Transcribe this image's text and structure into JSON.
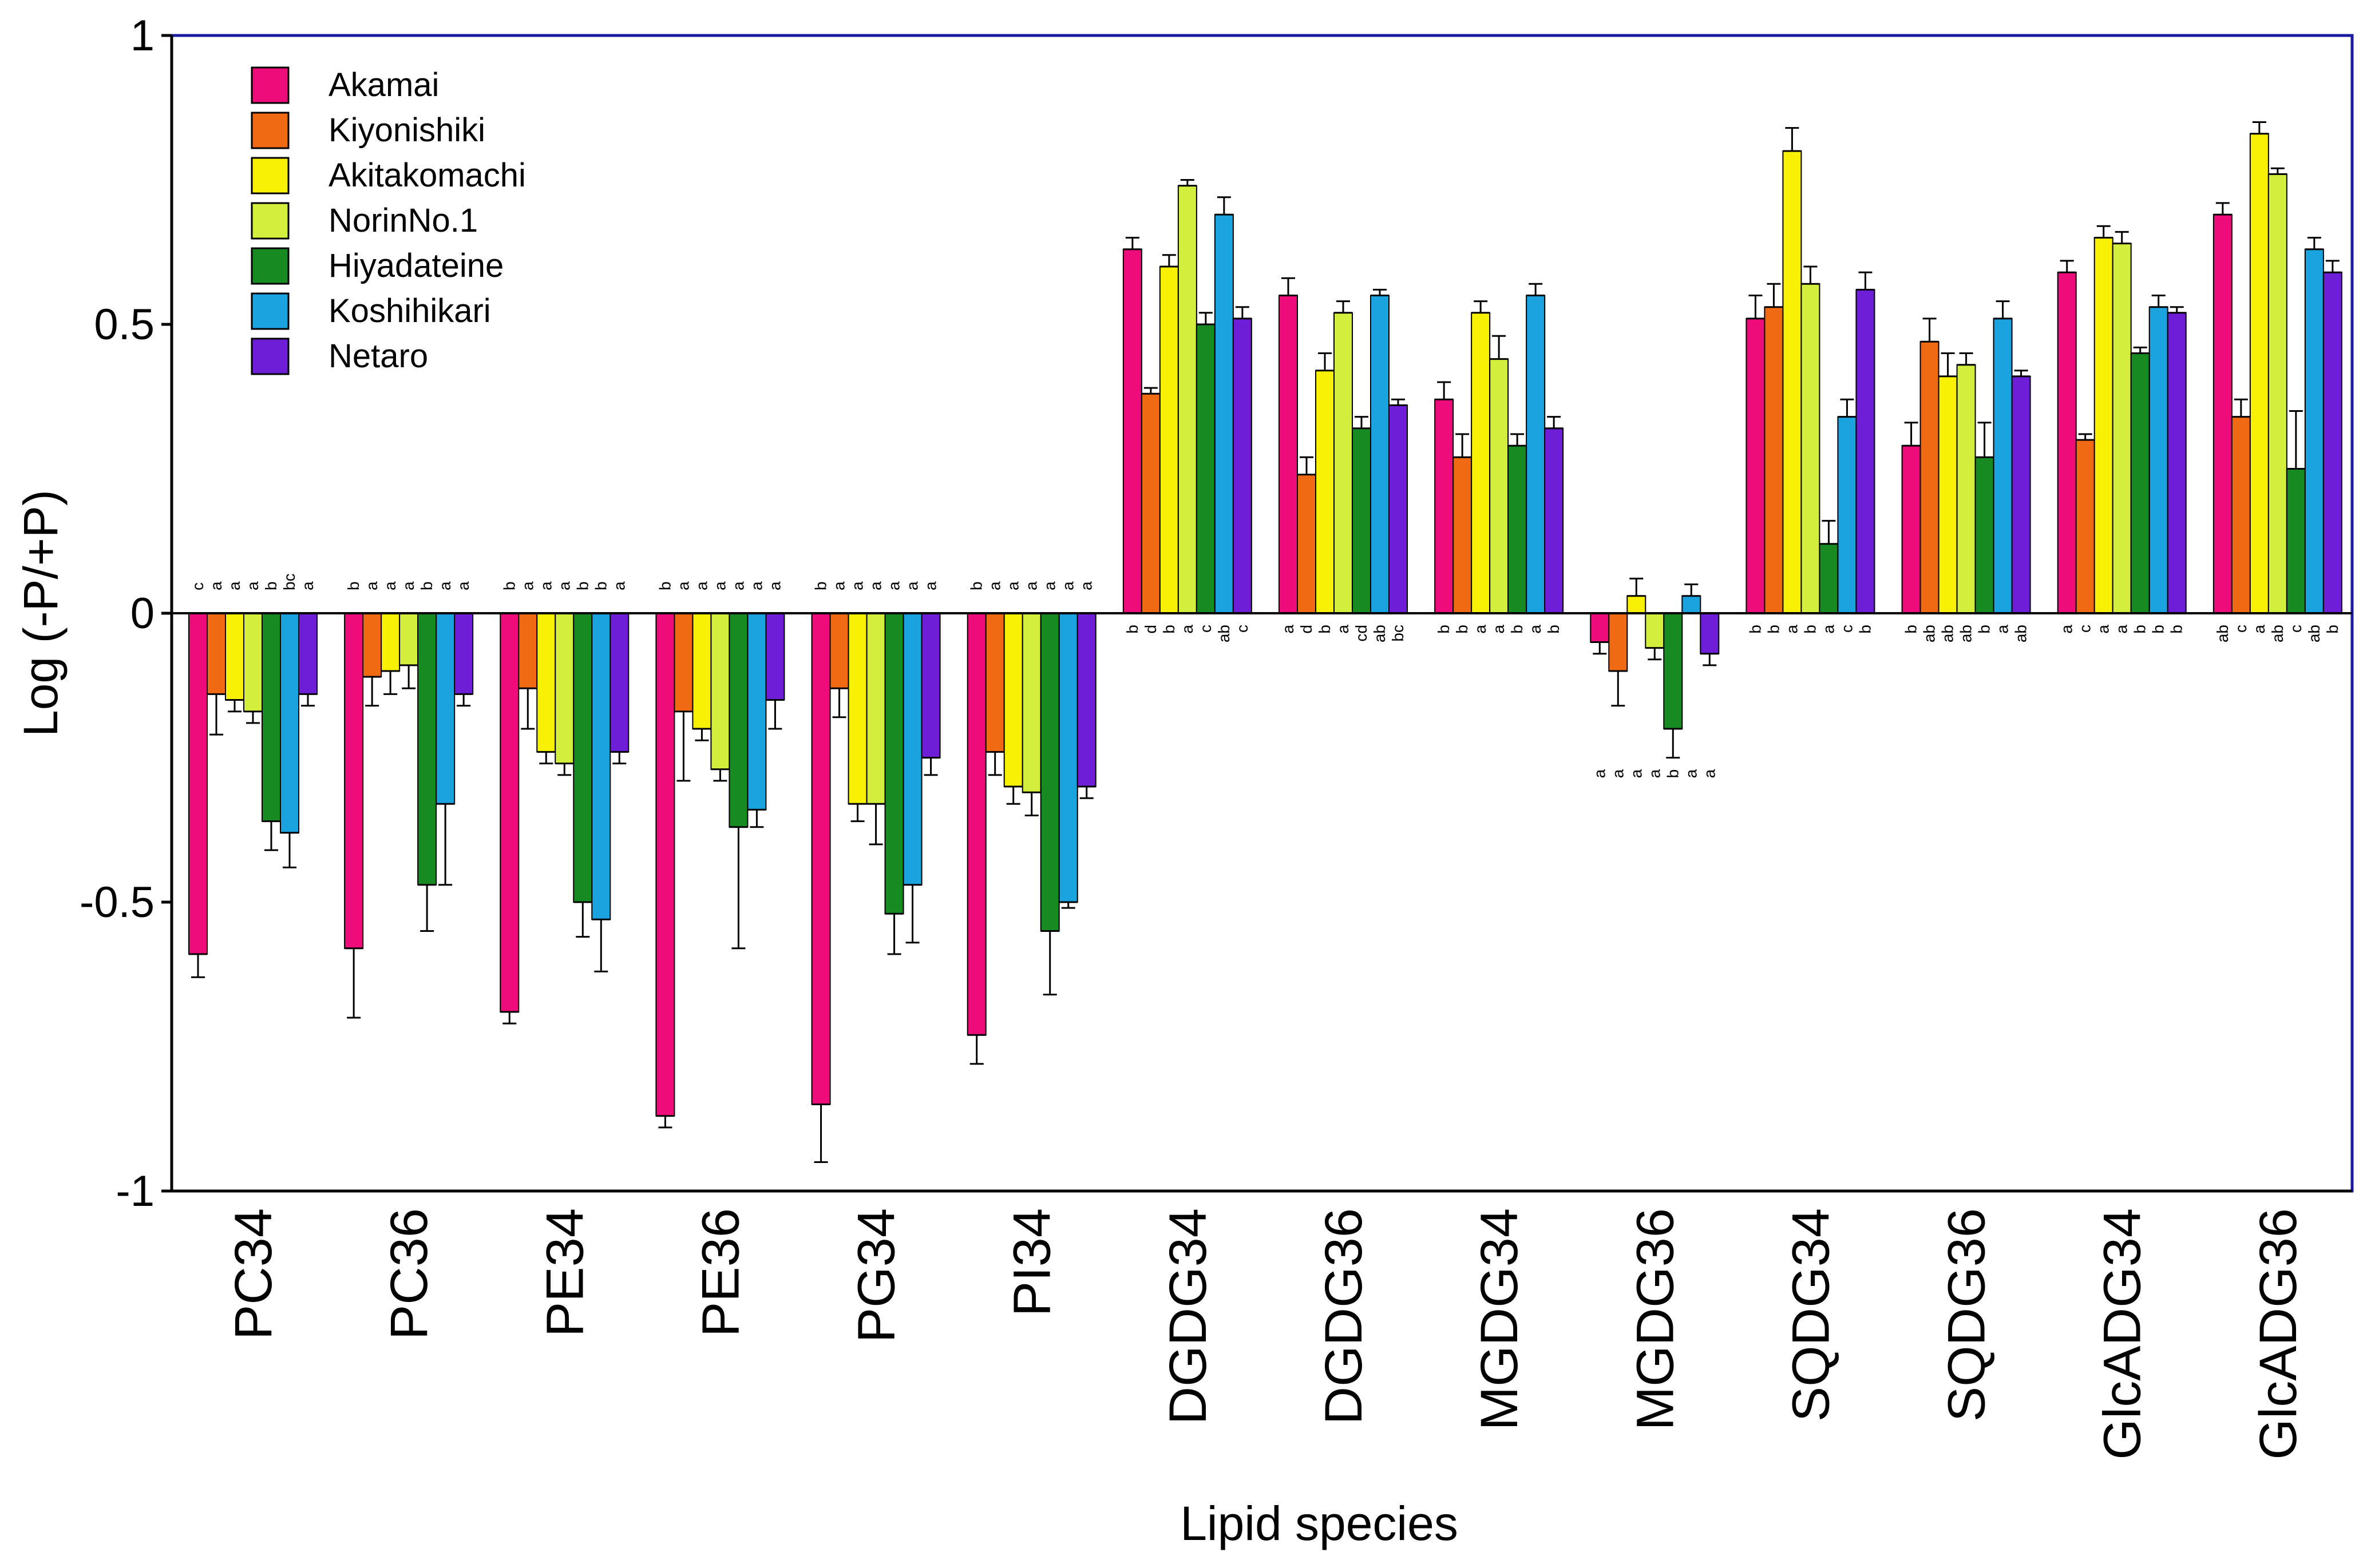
{
  "chart_data": {
    "type": "bar",
    "xlabel": "Lipid species",
    "ylabel": "Log (-P/+P)",
    "ylim": [
      -1,
      1
    ],
    "yticks": [
      "1",
      "0.5",
      "0",
      "-0.5",
      "-1"
    ],
    "ytick_values": [
      1,
      0.5,
      0,
      -0.5,
      -1
    ],
    "grid": false,
    "legend_position": "top-left",
    "categories": [
      "PC34",
      "PC36",
      "PE34",
      "PE36",
      "PG34",
      "PI34",
      "DGDG34",
      "DGDG36",
      "MGDG34",
      "MGDG36",
      "SQDG34",
      "SQDG36",
      "GlcADG34",
      "GlcADG36"
    ],
    "series": [
      {
        "name": "Akamai",
        "color": "#ee0b7a",
        "values": [
          -0.59,
          -0.58,
          -0.69,
          -0.87,
          -0.85,
          -0.73,
          0.63,
          0.55,
          0.37,
          -0.05,
          0.51,
          0.29,
          0.59,
          0.69
        ],
        "errors": [
          0.04,
          0.12,
          0.02,
          0.02,
          0.1,
          0.05,
          0.02,
          0.03,
          0.03,
          0.02,
          0.04,
          0.04,
          0.02,
          0.02
        ]
      },
      {
        "name": "Kiyonishiki",
        "color": "#f06a14",
        "values": [
          -0.14,
          -0.11,
          -0.13,
          -0.17,
          -0.13,
          -0.24,
          0.38,
          0.24,
          0.27,
          -0.1,
          0.53,
          0.47,
          0.3,
          0.34
        ],
        "errors": [
          0.07,
          0.05,
          0.07,
          0.12,
          0.05,
          0.04,
          0.01,
          0.03,
          0.04,
          0.06,
          0.04,
          0.04,
          0.01,
          0.03
        ]
      },
      {
        "name": "Akitakomachi",
        "color": "#f8f005",
        "values": [
          -0.15,
          -0.1,
          -0.24,
          -0.2,
          -0.33,
          -0.3,
          0.6,
          0.42,
          0.52,
          0.03,
          0.8,
          0.41,
          0.65,
          0.83
        ],
        "errors": [
          0.02,
          0.04,
          0.02,
          0.02,
          0.03,
          0.03,
          0.02,
          0.03,
          0.02,
          0.03,
          0.04,
          0.04,
          0.02,
          0.02
        ]
      },
      {
        "name": "NorinNo.1",
        "color": "#d4ee3e",
        "values": [
          -0.17,
          -0.09,
          -0.26,
          -0.27,
          -0.33,
          -0.31,
          0.74,
          0.52,
          0.44,
          -0.06,
          0.57,
          0.43,
          0.64,
          0.76
        ],
        "errors": [
          0.02,
          0.04,
          0.02,
          0.02,
          0.07,
          0.04,
          0.01,
          0.02,
          0.04,
          0.02,
          0.03,
          0.02,
          0.02,
          0.01
        ]
      },
      {
        "name": "Hiyadateine",
        "color": "#178a22",
        "values": [
          -0.36,
          -0.47,
          -0.5,
          -0.37,
          -0.52,
          -0.55,
          0.5,
          0.32,
          0.29,
          -0.2,
          0.12,
          0.27,
          0.45,
          0.25
        ],
        "errors": [
          0.05,
          0.08,
          0.06,
          0.21,
          0.07,
          0.11,
          0.02,
          0.02,
          0.02,
          0.05,
          0.04,
          0.06,
          0.01,
          0.1
        ]
      },
      {
        "name": "Koshihikari",
        "color": "#1aa3df",
        "values": [
          -0.38,
          -0.33,
          -0.53,
          -0.34,
          -0.47,
          -0.5,
          0.69,
          0.55,
          0.55,
          0.03,
          0.34,
          0.51,
          0.53,
          0.63
        ],
        "errors": [
          0.06,
          0.14,
          0.09,
          0.03,
          0.1,
          0.01,
          0.03,
          0.01,
          0.02,
          0.02,
          0.03,
          0.03,
          0.02,
          0.02
        ]
      },
      {
        "name": "Netaro",
        "color": "#6d1ed6",
        "values": [
          -0.14,
          -0.14,
          -0.24,
          -0.15,
          -0.25,
          -0.3,
          0.51,
          0.36,
          0.32,
          -0.07,
          0.56,
          0.41,
          0.52,
          0.59
        ],
        "errors": [
          0.02,
          0.02,
          0.02,
          0.05,
          0.03,
          0.02,
          0.02,
          0.01,
          0.02,
          0.02,
          0.03,
          0.01,
          0.01,
          0.02
        ]
      }
    ],
    "significance_letters": [
      [
        "c",
        "a",
        "a",
        "a",
        "b",
        "bc",
        "a"
      ],
      [
        "b",
        "a",
        "a",
        "a",
        "b",
        "a",
        "a"
      ],
      [
        "b",
        "a",
        "a",
        "a",
        "b",
        "b",
        "a"
      ],
      [
        "b",
        "a",
        "a",
        "a",
        "a",
        "a",
        "a"
      ],
      [
        "b",
        "a",
        "a",
        "a",
        "a",
        "a",
        "a"
      ],
      [
        "b",
        "a",
        "a",
        "a",
        "a",
        "a",
        "a"
      ],
      [
        "b",
        "d",
        "b",
        "a",
        "c",
        "ab",
        "c"
      ],
      [
        "a",
        "d",
        "b",
        "a",
        "cd",
        "ab",
        "bc"
      ],
      [
        "b",
        "b",
        "a",
        "a",
        "b",
        "a",
        "b"
      ],
      [
        "a",
        "a",
        "a",
        "a",
        "b",
        "a",
        "a"
      ],
      [
        "b",
        "b",
        "a",
        "b",
        "a",
        "c",
        "b"
      ],
      [
        "b",
        "ab",
        "ab",
        "ab",
        "b",
        "a",
        "ab"
      ],
      [
        "a",
        "c",
        "a",
        "a",
        "b",
        "b",
        "b"
      ],
      [
        "ab",
        "c",
        "a",
        "ab",
        "c",
        "ab",
        "b"
      ]
    ]
  }
}
